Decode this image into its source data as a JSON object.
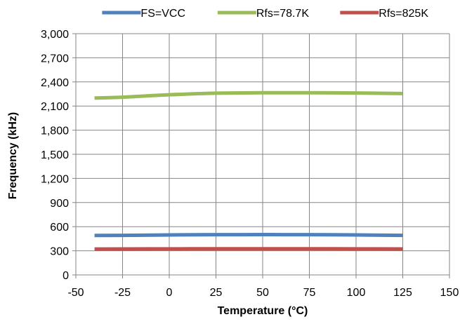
{
  "chart_data": {
    "type": "line",
    "title": "",
    "xlabel": "Temperature (°C)",
    "ylabel": "Frequency (kHz)",
    "xlim": [
      -50,
      150
    ],
    "ylim": [
      0,
      3000
    ],
    "xticks": [
      -50,
      -25,
      0,
      25,
      50,
      75,
      100,
      125,
      150
    ],
    "yticks": [
      0,
      300,
      600,
      900,
      1200,
      1500,
      1800,
      2100,
      2400,
      2700,
      3000
    ],
    "xtick_labels": [
      "-50",
      "-25",
      "0",
      "25",
      "50",
      "75",
      "100",
      "125",
      "150"
    ],
    "ytick_labels": [
      "0",
      "300",
      "600",
      "900",
      "1,200",
      "1,500",
      "1,800",
      "2,100",
      "2,400",
      "2,700",
      "3,000"
    ],
    "grid": true,
    "legend_position": "top",
    "series": [
      {
        "name": "FS=VCC",
        "color": "#4F81BD",
        "x": [
          -40,
          -25,
          0,
          25,
          50,
          75,
          100,
          125
        ],
        "y": [
          490,
          492,
          497,
          500,
          501,
          500,
          497,
          492
        ]
      },
      {
        "name": "Rfs=78.7K",
        "color": "#9BBB59",
        "x": [
          -40,
          -25,
          0,
          25,
          50,
          75,
          100,
          125
        ],
        "y": [
          2200,
          2210,
          2240,
          2260,
          2265,
          2265,
          2262,
          2255
        ]
      },
      {
        "name": "Rfs=825K",
        "color": "#C0504D",
        "x": [
          -40,
          -25,
          0,
          25,
          50,
          75,
          100,
          125
        ],
        "y": [
          322,
          323,
          324,
          325,
          325,
          325,
          324,
          323
        ]
      }
    ]
  }
}
